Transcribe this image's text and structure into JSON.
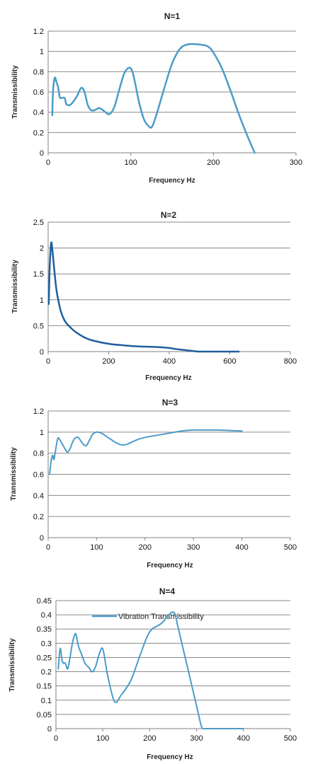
{
  "chart_data": [
    {
      "type": "line",
      "title": "N=1",
      "xlabel": "Frequency Hz",
      "ylabel": "Transmissibility",
      "xlim": [
        0,
        300
      ],
      "ylim": [
        0,
        1.2
      ],
      "xticks": [
        0,
        100,
        200,
        300
      ],
      "yticks": [
        0,
        0.2,
        0.4,
        0.6,
        0.8,
        1,
        1.2
      ],
      "xtick_labels": [
        "0",
        "100",
        "200",
        "300"
      ],
      "ytick_labels": [
        "0",
        "0.2",
        "0.4",
        "0.6",
        "0.8",
        "1",
        "1.2"
      ],
      "grid": true,
      "color": "#4a9cc9",
      "series": [
        {
          "x": [
            5,
            6,
            8,
            10,
            12,
            14,
            16,
            20,
            22,
            26,
            30,
            35,
            40,
            44,
            48,
            52,
            56,
            62,
            68,
            74,
            80,
            86,
            92,
            98,
            102,
            106,
            110,
            116,
            122,
            126,
            132,
            140,
            150,
            160,
            170,
            180,
            190,
            195,
            200,
            210,
            220,
            230,
            240,
            250
          ],
          "y": [
            0.37,
            0.62,
            0.74,
            0.7,
            0.65,
            0.55,
            0.54,
            0.54,
            0.48,
            0.47,
            0.5,
            0.56,
            0.64,
            0.6,
            0.47,
            0.42,
            0.42,
            0.44,
            0.41,
            0.38,
            0.45,
            0.62,
            0.78,
            0.84,
            0.8,
            0.66,
            0.5,
            0.33,
            0.26,
            0.26,
            0.4,
            0.62,
            0.88,
            1.03,
            1.07,
            1.07,
            1.06,
            1.04,
            0.99,
            0.84,
            0.63,
            0.4,
            0.19,
            0.0
          ]
        }
      ]
    },
    {
      "type": "line",
      "title": "N=2",
      "xlabel": "Frequency Hz",
      "ylabel": "Transmissibility",
      "xlim": [
        0,
        800
      ],
      "ylim": [
        0,
        2.5
      ],
      "xticks": [
        0,
        200,
        400,
        600,
        800
      ],
      "yticks": [
        0,
        0.5,
        1,
        1.5,
        2,
        2.5
      ],
      "xtick_labels": [
        "0",
        "200",
        "400",
        "600",
        "800"
      ],
      "ytick_labels": [
        "0",
        "0.5",
        "1",
        "1.5",
        "2",
        "2.5"
      ],
      "grid": true,
      "color": "#1f5f9e",
      "series": [
        {
          "x": [
            2,
            5,
            10,
            15,
            20,
            25,
            30,
            40,
            50,
            60,
            80,
            100,
            125,
            150,
            200,
            250,
            300,
            350,
            400,
            420,
            450,
            480,
            500,
            550,
            600,
            630
          ],
          "y": [
            0.92,
            1.6,
            2.1,
            1.9,
            1.6,
            1.3,
            1.1,
            0.82,
            0.65,
            0.55,
            0.43,
            0.34,
            0.26,
            0.21,
            0.15,
            0.12,
            0.1,
            0.09,
            0.07,
            0.05,
            0.03,
            0.01,
            0.0,
            0.0,
            0.0,
            0.0
          ]
        }
      ]
    },
    {
      "type": "line",
      "title": "N=3",
      "xlabel": "Frequency Hz",
      "ylabel": "Transmissibility",
      "xlim": [
        0,
        500
      ],
      "ylim": [
        0,
        1.2
      ],
      "xticks": [
        0,
        100,
        200,
        300,
        400,
        500
      ],
      "yticks": [
        0,
        0.2,
        0.4,
        0.6,
        0.8,
        1,
        1.2
      ],
      "xtick_labels": [
        "0",
        "100",
        "200",
        "300",
        "400",
        "500"
      ],
      "ytick_labels": [
        "0",
        "0.2",
        "0.4",
        "0.6",
        "0.8",
        "1",
        "1.2"
      ],
      "grid": true,
      "color": "#4a9cc9",
      "series": [
        {
          "x": [
            3,
            6,
            9,
            12,
            15,
            20,
            25,
            30,
            35,
            40,
            45,
            50,
            55,
            62,
            70,
            78,
            85,
            92,
            100,
            110,
            120,
            130,
            140,
            150,
            160,
            170,
            185,
            200,
            225,
            250,
            275,
            300,
            325,
            350,
            375,
            400
          ],
          "y": [
            0.6,
            0.72,
            0.78,
            0.74,
            0.82,
            0.94,
            0.92,
            0.88,
            0.84,
            0.81,
            0.84,
            0.9,
            0.94,
            0.95,
            0.9,
            0.87,
            0.92,
            0.98,
            1.0,
            0.99,
            0.96,
            0.93,
            0.9,
            0.88,
            0.88,
            0.9,
            0.93,
            0.95,
            0.97,
            0.99,
            1.01,
            1.02,
            1.02,
            1.02,
            1.015,
            1.01
          ]
        }
      ]
    },
    {
      "type": "line",
      "title": "N=4",
      "xlabel": "Frequency Hz",
      "ylabel": "Transmissibility",
      "xlim": [
        0,
        500
      ],
      "ylim": [
        0,
        0.45
      ],
      "xticks": [
        0,
        100,
        200,
        300,
        400,
        500
      ],
      "yticks": [
        0,
        0.05,
        0.1,
        0.15,
        0.2,
        0.25,
        0.3,
        0.35,
        0.4,
        0.45
      ],
      "xtick_labels": [
        "0",
        "100",
        "200",
        "300",
        "400",
        "500"
      ],
      "ytick_labels": [
        "0",
        "0.05",
        "0.1",
        "0.15",
        "0.2",
        "0.25",
        "0.3",
        "0.35",
        "0.4",
        "0.45"
      ],
      "grid": true,
      "legend": "Vibration Transmissibility",
      "legend_placement": "top-center",
      "color": "#4a9cc9",
      "series": [
        {
          "name": "Vibration Transmissibility",
          "x": [
            5,
            8,
            10,
            13,
            16,
            20,
            25,
            30,
            35,
            40,
            43,
            48,
            55,
            62,
            70,
            78,
            85,
            92,
            100,
            110,
            125,
            140,
            160,
            180,
            200,
            225,
            250,
            260,
            270,
            280,
            290,
            300,
            310,
            315,
            320,
            340,
            360,
            380,
            400
          ],
          "y": [
            0.21,
            0.27,
            0.28,
            0.24,
            0.23,
            0.23,
            0.21,
            0.25,
            0.3,
            0.33,
            0.33,
            0.29,
            0.26,
            0.23,
            0.215,
            0.2,
            0.22,
            0.26,
            0.28,
            0.19,
            0.095,
            0.12,
            0.17,
            0.26,
            0.34,
            0.37,
            0.41,
            0.36,
            0.29,
            0.22,
            0.15,
            0.08,
            0.01,
            0.0,
            0.0,
            0.0,
            0.0,
            0.0,
            0.0
          ]
        }
      ]
    }
  ]
}
